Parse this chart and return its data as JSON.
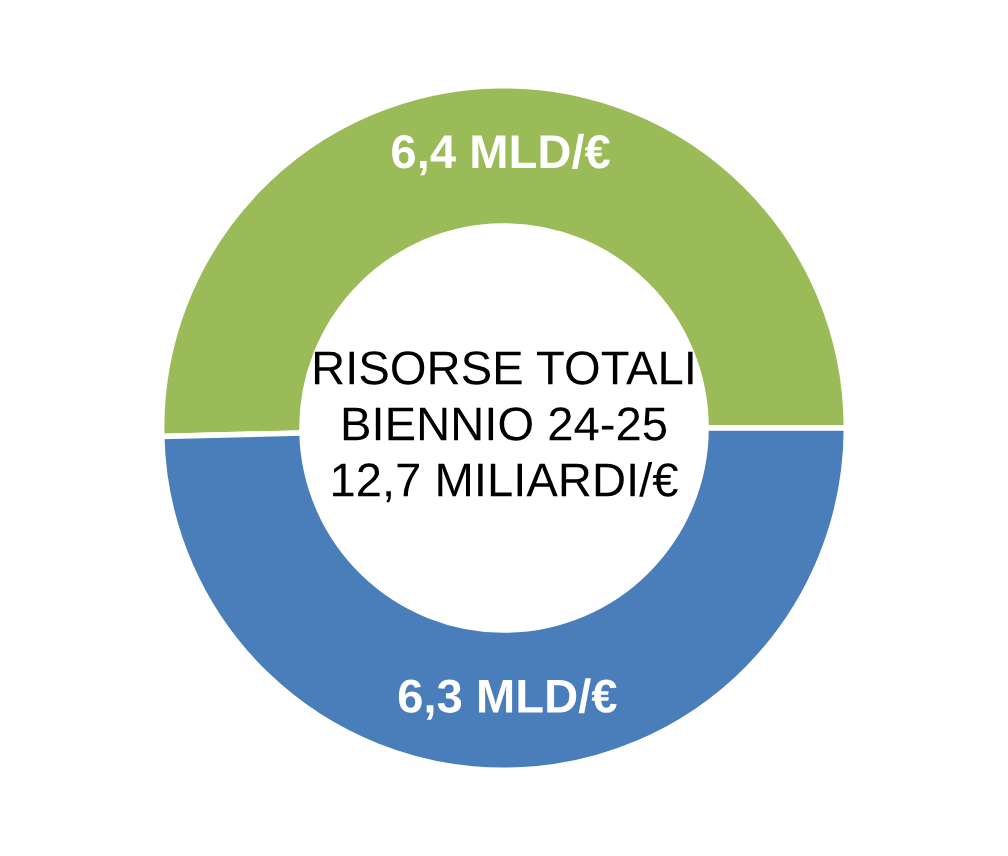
{
  "chart_data": {
    "type": "donut",
    "categories": [
      null,
      null
    ],
    "values": [
      6.4,
      6.3
    ],
    "colors": [
      "#9bbb59",
      "#4a7ebb"
    ],
    "value_labels": [
      "6,4 MLD/€",
      "6,3 MLD/€"
    ],
    "annotations": [
      "RISORSE TOTALI\nBIENNIO 24-25\n12,7 MILIARDI/€"
    ],
    "legend": false
  }
}
